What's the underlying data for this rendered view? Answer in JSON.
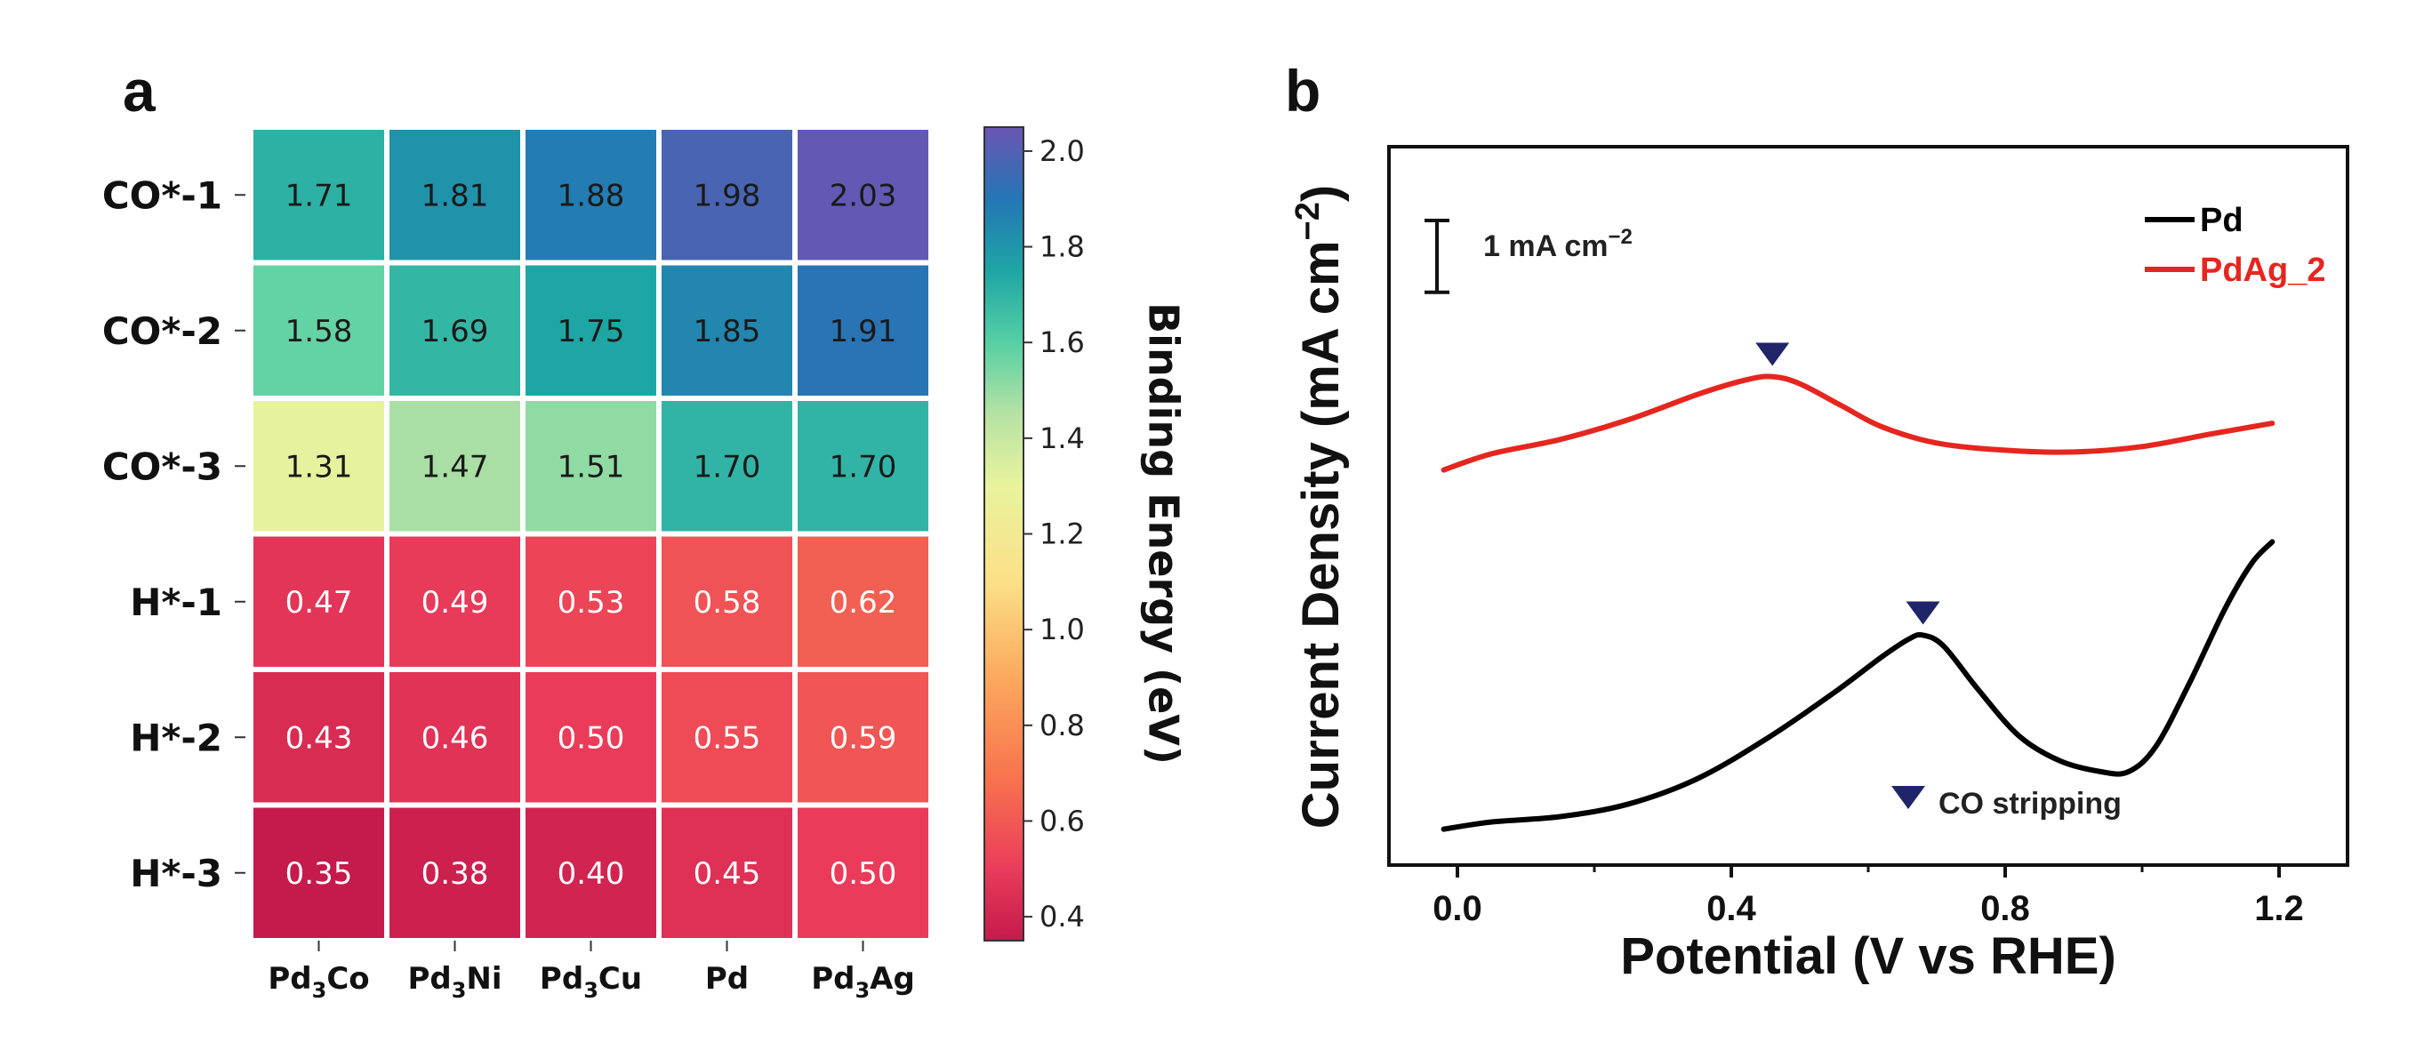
{
  "chart_data": [
    {
      "type": "heatmap",
      "panel_letter": "a",
      "rows": [
        "CO*-1",
        "CO*-2",
        "CO*-3",
        "H*-1",
        "H*-2",
        "H*-3"
      ],
      "columns": [
        {
          "base": "Pd",
          "sub": "3",
          "tail": "Co"
        },
        {
          "base": "Pd",
          "sub": "3",
          "tail": "Ni"
        },
        {
          "base": "Pd",
          "sub": "3",
          "tail": "Cu"
        },
        {
          "base": "Pd",
          "sub": "",
          "tail": ""
        },
        {
          "base": "Pd",
          "sub": "3",
          "tail": "Ag"
        }
      ],
      "values": [
        [
          1.71,
          1.81,
          1.88,
          1.98,
          2.03
        ],
        [
          1.58,
          1.69,
          1.75,
          1.85,
          1.91
        ],
        [
          1.31,
          1.47,
          1.51,
          1.7,
          1.7
        ],
        [
          0.47,
          0.49,
          0.53,
          0.58,
          0.62
        ],
        [
          0.43,
          0.46,
          0.5,
          0.55,
          0.59
        ],
        [
          0.35,
          0.38,
          0.4,
          0.45,
          0.5
        ]
      ],
      "colorbar": {
        "label": "Binding Energy (eV)",
        "range": [
          0.35,
          2.05
        ],
        "ticks": [
          0.4,
          0.6,
          0.8,
          1.0,
          1.2,
          1.4,
          1.6,
          1.8,
          2.0
        ],
        "tick_labels": [
          "0.4",
          "0.6",
          "0.8",
          "1.0",
          "1.2",
          "1.4",
          "1.6",
          "1.8",
          "2.0"
        ],
        "stops": [
          {
            "v": 0.35,
            "c": "#c51a4c"
          },
          {
            "v": 0.5,
            "c": "#ea3c5a"
          },
          {
            "v": 0.7,
            "c": "#f8764e"
          },
          {
            "v": 0.9,
            "c": "#fba95e"
          },
          {
            "v": 1.1,
            "c": "#fbe087"
          },
          {
            "v": 1.3,
            "c": "#e9f39d"
          },
          {
            "v": 1.45,
            "c": "#b6e2a4"
          },
          {
            "v": 1.6,
            "c": "#56cfa4"
          },
          {
            "v": 1.75,
            "c": "#1ea6a5"
          },
          {
            "v": 1.9,
            "c": "#2476b4"
          },
          {
            "v": 2.05,
            "c": "#6a55b3"
          }
        ]
      }
    },
    {
      "type": "line",
      "panel_letter": "b",
      "xlabel": "Potential (V vs RHE)",
      "ylabel": "Current Density (mA cm",
      "ylabel_sup": "−2",
      "ylabel_close": ")",
      "xlim": [
        -0.1,
        1.3
      ],
      "ylim": [
        -0.1,
        1.9
      ],
      "x_ticks": [
        0.0,
        0.4,
        0.8,
        1.2
      ],
      "x_tick_labels": [
        "0.0",
        "0.4",
        "0.8",
        "1.2"
      ],
      "scale_bar": {
        "label": "1 mA  cm",
        "label_sup": "−2",
        "value": 0.2
      },
      "marker_legend": "CO stripping",
      "colors": {
        "Pd": "#000000",
        "PdAg_2": "#e5261f",
        "marker": "#1f2568"
      },
      "series": [
        {
          "name": "Pd",
          "x": [
            -0.02,
            0.05,
            0.15,
            0.25,
            0.35,
            0.45,
            0.55,
            0.62,
            0.66,
            0.68,
            0.71,
            0.76,
            0.82,
            0.88,
            0.94,
            0.98,
            1.02,
            1.07,
            1.12,
            1.16,
            1.19
          ],
          "y": [
            0.0,
            0.02,
            0.035,
            0.07,
            0.14,
            0.25,
            0.38,
            0.48,
            0.53,
            0.54,
            0.51,
            0.39,
            0.26,
            0.19,
            0.16,
            0.16,
            0.23,
            0.41,
            0.61,
            0.74,
            0.8
          ],
          "marker_x": 0.68,
          "marker_y": 0.54
        },
        {
          "name": "PdAg_2",
          "x": [
            -0.02,
            0.05,
            0.15,
            0.25,
            0.35,
            0.42,
            0.46,
            0.5,
            0.56,
            0.62,
            0.7,
            0.8,
            0.9,
            1.0,
            1.1,
            1.19
          ],
          "y": [
            1.0,
            1.045,
            1.085,
            1.14,
            1.21,
            1.25,
            1.26,
            1.24,
            1.18,
            1.12,
            1.075,
            1.055,
            1.05,
            1.065,
            1.1,
            1.13
          ],
          "marker_x": 0.46,
          "marker_y": 1.26
        }
      ]
    }
  ]
}
